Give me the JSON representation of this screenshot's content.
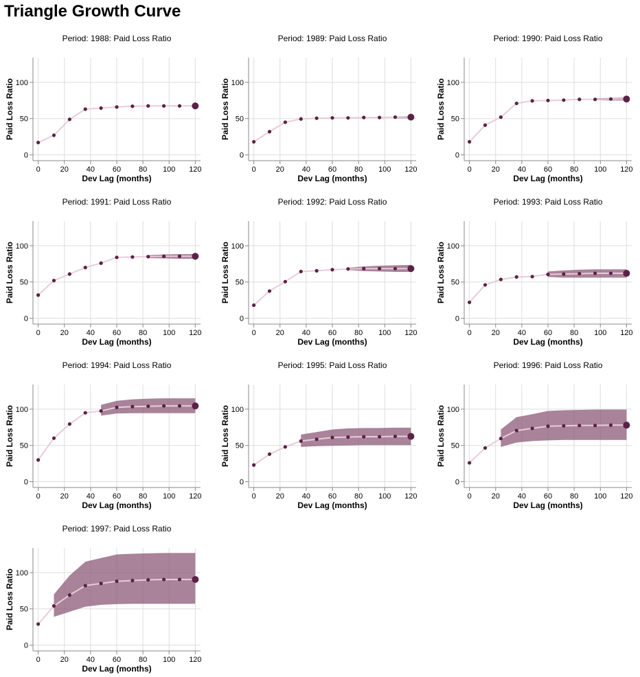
{
  "page_title": "Triangle Growth Curve",
  "colors": {
    "point": "#5b2146",
    "line": "#e8ccd8",
    "band": "#8c5a78",
    "grid": "#dddddd",
    "axis": "#888888"
  },
  "chart_data": {
    "type": "line",
    "facet_field": "Period",
    "measure": "Paid Loss Ratio",
    "xlabel": "Dev Lag (months)",
    "ylabel": "Paid Loss Ratio",
    "x_ticks": [
      0,
      20,
      40,
      60,
      80,
      100,
      120
    ],
    "y_ticks": [
      0,
      50,
      100
    ],
    "xlim": [
      -4,
      124
    ],
    "ylim": [
      -8,
      134
    ],
    "grid": true,
    "x": [
      0,
      12,
      24,
      36,
      48,
      60,
      72,
      84,
      96,
      108,
      120
    ],
    "panels": [
      {
        "title": "Period: 1988: Paid Loss Ratio",
        "values": [
          17,
          27,
          49,
          63,
          64.5,
          66,
          67,
          67.5,
          67.5,
          67.5,
          67.5
        ],
        "band": null
      },
      {
        "title": "Period: 1989: Paid Loss Ratio",
        "values": [
          18,
          32,
          45,
          49.5,
          50.5,
          51,
          51,
          51.5,
          51.5,
          52,
          52
        ],
        "band": {
          "x": [
            108,
            120
          ],
          "lower": [
            50.5,
            50.5
          ],
          "upper": [
            53,
            53.5
          ]
        }
      },
      {
        "title": "Period: 1990: Paid Loss Ratio",
        "values": [
          18,
          41,
          52,
          71,
          74.5,
          75,
          75.5,
          76.5,
          76.5,
          77,
          77
        ],
        "band": {
          "x": [
            96,
            108,
            120
          ],
          "lower": [
            75.5,
            75,
            75
          ],
          "upper": [
            78,
            78.5,
            79
          ]
        }
      },
      {
        "title": "Period: 1991: Paid Loss Ratio",
        "values": [
          32,
          52,
          61,
          70,
          76,
          84,
          84.5,
          85,
          85.5,
          85.5,
          85.5
        ],
        "band": {
          "x": [
            84,
            96,
            108,
            120
          ],
          "lower": [
            83,
            82.5,
            82,
            82
          ],
          "upper": [
            87,
            88,
            88.5,
            88.5
          ]
        }
      },
      {
        "title": "Period: 1992: Paid Loss Ratio",
        "values": [
          18,
          37.5,
          50.5,
          64.5,
          65.5,
          67,
          68,
          68.5,
          68.5,
          68.5,
          68.5
        ],
        "band": {
          "x": [
            72,
            84,
            96,
            108,
            120
          ],
          "lower": [
            66.5,
            65,
            64.5,
            64,
            64
          ],
          "upper": [
            69.5,
            71.5,
            72.5,
            73,
            73.5
          ]
        }
      },
      {
        "title": "Period: 1993: Paid Loss Ratio",
        "values": [
          22,
          46,
          53.5,
          57,
          57.5,
          60.5,
          61,
          61.5,
          62,
          62,
          62
        ],
        "band": {
          "x": [
            60,
            72,
            84,
            96,
            108,
            120
          ],
          "lower": [
            57,
            56,
            56,
            56,
            56,
            56
          ],
          "upper": [
            64.5,
            66,
            67,
            67.5,
            67.5,
            67.5
          ]
        }
      },
      {
        "title": "Period: 1994: Paid Loss Ratio",
        "values": [
          30,
          60,
          79.5,
          95,
          97.5,
          102.5,
          103.5,
          104,
          104.5,
          104.5,
          104.5
        ],
        "band": {
          "x": [
            48,
            60,
            72,
            84,
            96,
            108,
            120
          ],
          "lower": [
            91,
            94,
            94.5,
            94.5,
            94.5,
            94.5,
            94.5
          ],
          "upper": [
            106,
            111.5,
            113.5,
            114.5,
            115,
            115,
            115
          ]
        }
      },
      {
        "title": "Period: 1995: Paid Loss Ratio",
        "values": [
          23,
          38,
          48,
          56,
          58.5,
          61,
          61.5,
          62,
          62,
          62.5,
          62.5
        ],
        "band": {
          "x": [
            36,
            48,
            60,
            72,
            84,
            96,
            108,
            120
          ],
          "lower": [
            48,
            49,
            49.5,
            50,
            50.5,
            50.5,
            50.5,
            50.5
          ],
          "upper": [
            65,
            68.5,
            72,
            73.5,
            74,
            74,
            74.5,
            74.5
          ]
        }
      },
      {
        "title": "Period: 1996: Paid Loss Ratio",
        "values": [
          26,
          46.5,
          59.5,
          70.5,
          73.5,
          76.5,
          77,
          77.5,
          77.5,
          78,
          78
        ],
        "band": {
          "x": [
            24,
            36,
            48,
            60,
            72,
            84,
            96,
            108,
            120
          ],
          "lower": [
            48,
            54,
            56,
            57,
            57.5,
            57.5,
            57.5,
            57.5,
            57.5
          ],
          "upper": [
            72,
            89,
            93,
            97.5,
            98.5,
            99,
            99.5,
            99.5,
            99.5
          ]
        }
      },
      {
        "title": "Period: 1997: Paid Loss Ratio",
        "values": [
          29,
          54,
          69,
          82,
          85,
          88,
          89,
          90,
          90.5,
          90.5,
          90.5
        ],
        "band": {
          "x": [
            12,
            24,
            36,
            48,
            60,
            72,
            84,
            96,
            108,
            120
          ],
          "lower": [
            39,
            46,
            53,
            55.5,
            56.5,
            57,
            57,
            57,
            57,
            57
          ],
          "upper": [
            70,
            96,
            115,
            120,
            125,
            126,
            126.5,
            127,
            127,
            127
          ]
        }
      }
    ]
  }
}
